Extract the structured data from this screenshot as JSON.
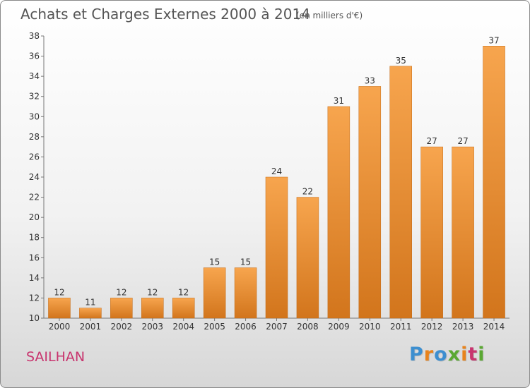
{
  "colors": {
    "bar_top": "#f7a54e",
    "bar_bottom": "#d2751c",
    "bar_stroke": "#c46a14",
    "title": "#555555",
    "commune": "#c8346e",
    "logo_letters": [
      "#3d8fd0",
      "#e8831c",
      "#3d8fd0",
      "#5aa832",
      "#e8831c",
      "#c8346e",
      "#5aa832"
    ]
  },
  "chart_data": {
    "type": "bar",
    "title": "Achats et Charges Externes 2000 à 2014",
    "subtitle": "(en milliers d'€)",
    "xlabel": "",
    "ylabel": "",
    "categories": [
      "2000",
      "2001",
      "2002",
      "2003",
      "2004",
      "2005",
      "2006",
      "2007",
      "2008",
      "2009",
      "2010",
      "2011",
      "2012",
      "2013",
      "2014"
    ],
    "values": [
      12,
      11,
      12,
      12,
      12,
      15,
      15,
      24,
      22,
      31,
      33,
      35,
      27,
      27,
      37
    ],
    "ylim": [
      10,
      38
    ],
    "yticks": [
      10,
      12,
      14,
      16,
      18,
      20,
      22,
      24,
      26,
      28,
      30,
      32,
      34,
      36,
      38
    ],
    "grid": false,
    "legend": "none"
  },
  "footer": {
    "commune": "SAILHAN",
    "logo": "Proxiti"
  }
}
